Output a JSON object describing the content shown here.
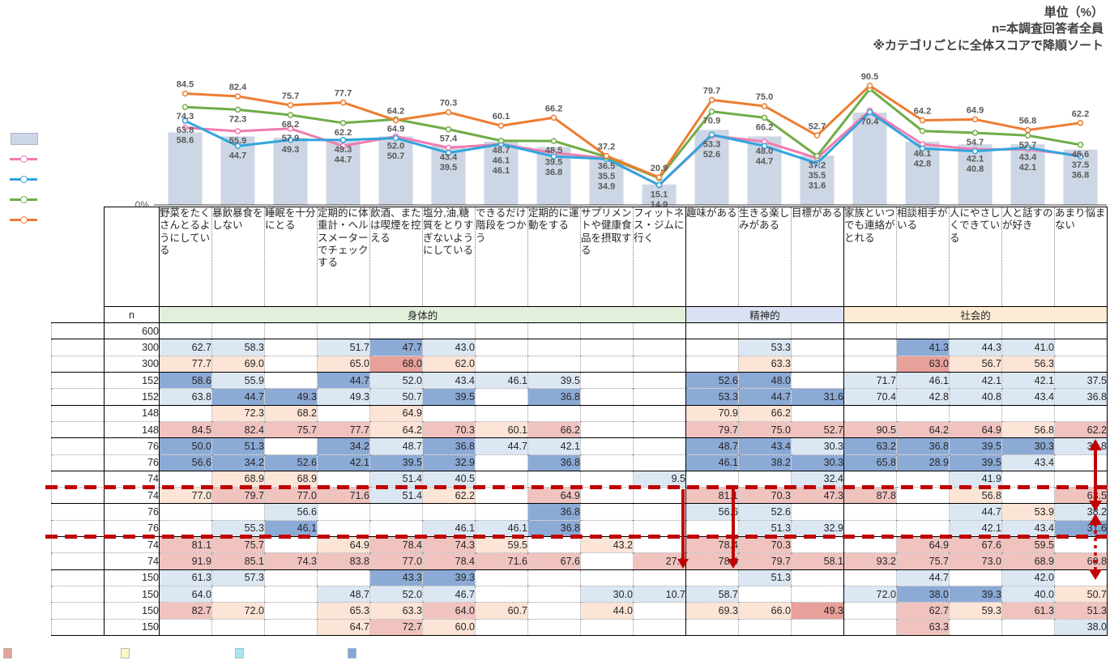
{
  "notes": {
    "unit": "単位（%）",
    "n": "n=本調査回答者全員",
    "sort": "※カテゴリごとに全体スコアで降順ソート"
  },
  "axis": {
    "zero_label": "0%"
  },
  "groups": [
    {
      "label": "身体的",
      "span": 10,
      "color": "#e2efda"
    },
    {
      "label": "精神的",
      "span": 3,
      "color": "#d9e1f2"
    },
    {
      "label": "社会的",
      "span": 5,
      "color": "#fcecd4"
    }
  ],
  "categories": [
    "野菜をたくさんとるようにしている",
    "暴飲暴食をしない",
    "睡眠を十分にとる",
    "定期的に体重計・ヘルスメーターでチェックする",
    "飲酒、または喫煙を控える",
    "塩分,油,糖質をとりすぎないようにしている",
    "できるだけ階段をつかう",
    "定期的に運動をする",
    "サプリメントや健康食品を摂取する",
    "フィットネス・ジムに行く",
    "趣味がある",
    "生きる楽しみがある",
    "目標がある",
    "家族といつでも連絡がとれる",
    "相談相手がいる",
    "人にやさしくできている",
    "人と話すのが好き",
    "あまり悩まない"
  ],
  "chart_data": {
    "type": "bar+line",
    "title": "",
    "ylim": [
      0,
      100
    ],
    "grid": false,
    "legend_position": "left",
    "categories": [
      "野菜をたくさんとるようにしている",
      "暴飲暴食をしない",
      "睡眠を十分にとる",
      "定期的に体重計・ヘルスメーターでチェックする",
      "飲酒、または喫煙を控える",
      "塩分,油,糖質をとりすぎないようにしている",
      "できるだけ階段をつかう",
      "定期的に運動をする",
      "サプリメントや健康食品を摂取する",
      "フィットネス・ジムに行く",
      "趣味がある",
      "生きる楽しみがある",
      "目標がある",
      "家族といつでも連絡がとれる",
      "相談相手がいる",
      "人にやさしくできている",
      "人と話すのが好き",
      "あまり悩まない"
    ],
    "bar_series": {
      "name": "total-bar",
      "color": "#cdd6e4",
      "labels_shown": false,
      "values": [
        55,
        52,
        51,
        50,
        52,
        45,
        48,
        44,
        35,
        15.5,
        57,
        52,
        37.5,
        70,
        48,
        46,
        46,
        42
      ]
    },
    "line_series": [
      {
        "name": "line-pink",
        "color": "#f17cb0",
        "values": [
          58.6,
          55.9,
          57.9,
          44.7,
          52.0,
          43.4,
          46.1,
          39.5,
          35.5,
          14.9,
          52.6,
          48.0,
          35.5,
          71.7,
          46.1,
          42.1,
          42.1,
          37.5
        ],
        "hidden_labels": [
          13
        ]
      },
      {
        "name": "line-blue",
        "color": "#31a5dd",
        "values": [
          63.8,
          44.7,
          49.3,
          49.3,
          50.7,
          39.5,
          46.1,
          36.8,
          34.9,
          15.1,
          53.3,
          44.7,
          31.6,
          70.4,
          42.8,
          40.8,
          43.4,
          36.8
        ],
        "hidden_labels": []
      },
      {
        "name": "line-green",
        "color": "#6fad47",
        "values": [
          74.3,
          72.3,
          68.2,
          62.2,
          64.9,
          57.4,
          48.7,
          48.5,
          36.5,
          20.3,
          70.9,
          66.2,
          37.2,
          88.0,
          56.1,
          54.7,
          52.7,
          45.6
        ],
        "hidden_labels": [
          9,
          13,
          14
        ]
      },
      {
        "name": "line-orange",
        "color": "#ed7d31",
        "values": [
          84.5,
          82.4,
          75.7,
          77.7,
          64.2,
          70.3,
          60.1,
          66.2,
          37.2,
          20.9,
          79.7,
          75.0,
          52.7,
          90.5,
          64.2,
          64.9,
          56.8,
          62.2
        ],
        "hidden_labels": []
      }
    ]
  },
  "table": {
    "n_header": "n",
    "cell_colors": {
      "b1": "#dbe7f3",
      "b2": "#8caad6",
      "r1": "#fce4d6",
      "r2": "#f0c3bf",
      "r3": "#e8a09a"
    },
    "rows": [
      {
        "n": "600",
        "cells": [
          null,
          null,
          null,
          null,
          null,
          null,
          null,
          null,
          null,
          null,
          null,
          null,
          null,
          null,
          null,
          null,
          null,
          null
        ]
      },
      {
        "n": "300",
        "cells": [
          "62.7|b1",
          "58.3|b1",
          null,
          "51.7|b1",
          "47.7|b2",
          "43.0|b1",
          null,
          null,
          null,
          null,
          null,
          "53.3|b1",
          null,
          null,
          "41.3|b2",
          "44.3|b1",
          "41.0|b1",
          null
        ]
      },
      {
        "n": "300",
        "cells": [
          "77.7|r1",
          "69.0|r1",
          null,
          "65.0|r1",
          "68.0|r3",
          "62.0|r1",
          null,
          null,
          null,
          null,
          null,
          "63.3|r1",
          null,
          null,
          "63.0|r3",
          "56.7|r1",
          "56.3|r1",
          null
        ]
      },
      {
        "n": "152",
        "cells": [
          "58.6|b2",
          "55.9|b1",
          null,
          "44.7|b2",
          "52.0|b1",
          "43.4|b1",
          "46.1|b1",
          "39.5|b1",
          null,
          null,
          "52.6|b2",
          "48.0|b2",
          null,
          "71.7|b1",
          "46.1|b1",
          "42.1|b1",
          "42.1|b1",
          "37.5|b1"
        ]
      },
      {
        "n": "152",
        "cells": [
          "63.8|b1",
          "44.7|b2",
          "49.3|b2",
          "49.3|b1",
          "50.7|b1",
          "39.5|b2",
          null,
          "36.8|b2",
          null,
          null,
          "53.3|b2",
          "44.7|b2",
          "31.6|b2",
          "70.4|b1",
          "42.8|b1",
          "40.8|b1",
          "43.4|b1",
          "36.8|b1"
        ]
      },
      {
        "n": "148",
        "cells": [
          null,
          "72.3|r1",
          "68.2|r1",
          null,
          "64.9|r1",
          null,
          null,
          null,
          null,
          null,
          "70.9|r1",
          "66.2|r1",
          null,
          null,
          null,
          null,
          null,
          null
        ]
      },
      {
        "n": "148",
        "cells": [
          "84.5|r2",
          "82.4|r2",
          "75.7|r2",
          "77.7|r2",
          "64.2|r1",
          "70.3|r2",
          "60.1|r1",
          "66.2|r2",
          null,
          null,
          "79.7|r2",
          "75.0|r2",
          "52.7|r2",
          "90.5|r2",
          "64.2|r2",
          "64.9|r2",
          "56.8|r1",
          "62.2|r2"
        ]
      },
      {
        "n": "76",
        "cells": [
          "50.0|b2",
          "51.3|b2",
          null,
          "34.2|b2",
          "48.7|b1",
          "36.8|b2",
          "44.7|b1",
          "42.1|b1",
          null,
          null,
          "48.7|b2",
          "43.4|b2",
          "30.3|b1",
          "63.2|b2",
          "36.8|b2",
          "39.5|b2",
          "30.3|b2",
          "36.8|b1"
        ]
      },
      {
        "n": "76",
        "cells": [
          "56.6|b2",
          "34.2|b2",
          "52.6|b2",
          "42.1|b2",
          "39.5|b2",
          "32.9|b2",
          null,
          "36.8|b2",
          null,
          null,
          "46.1|b2",
          "38.2|b2",
          "30.3|b2",
          "65.8|b2",
          "28.9|b2",
          "39.5|b2",
          "43.4|b1",
          null
        ]
      },
      {
        "n": "74",
        "cells": [
          null,
          "68.9|r1",
          "68.9|r1",
          null,
          "51.4|b1",
          "40.5|b1",
          null,
          null,
          null,
          "9.5|b1",
          null,
          null,
          "32.4|b1",
          null,
          null,
          "41.9|b1",
          null,
          null
        ]
      },
      {
        "n": "74",
        "cells": [
          "77.0|r1",
          "79.7|r2",
          "77.0|r2",
          "71.6|r2",
          "51.4|b1",
          "62.2|r1",
          null,
          "64.9|r2",
          null,
          null,
          "81.1|r2",
          "70.3|r2",
          "47.3|r2",
          "87.8|r2",
          null,
          "56.8|r1",
          null,
          "63.5|r2"
        ]
      },
      {
        "n": "76",
        "cells": [
          null,
          null,
          "56.6|b1",
          null,
          null,
          null,
          null,
          "36.8|b2",
          null,
          null,
          "56.6|b1",
          "52.6|b1",
          null,
          null,
          null,
          "44.7|b1",
          "53.9|r1",
          "38.2|b1"
        ]
      },
      {
        "n": "76",
        "cells": [
          null,
          "55.3|b1",
          "46.1|b2",
          null,
          null,
          "46.1|b1",
          "46.1|b1",
          "36.8|b2",
          null,
          null,
          null,
          "51.3|b1",
          "32.9|b1",
          null,
          null,
          "42.1|b1",
          "43.4|b1",
          "31.6|b2"
        ]
      },
      {
        "n": "74",
        "cells": [
          "81.1|r2",
          "75.7|r2",
          null,
          "64.9|r1",
          "78.4|r2",
          "74.3|r2",
          "59.5|r1",
          null,
          "43.2|r1",
          null,
          "78.4|r2",
          "70.3|r2",
          null,
          null,
          "64.9|r2",
          "67.6|r2",
          "59.5|r2",
          null
        ]
      },
      {
        "n": "74",
        "cells": [
          "91.9|r2",
          "85.1|r2",
          "74.3|r2",
          "83.8|r2",
          "77.0|r2",
          "78.4|r2",
          "71.6|r2",
          "67.6|r2",
          null,
          "27.0|r2",
          "78.4|r2",
          "79.7|r2",
          "58.1|r2",
          "93.2|r2",
          "75.7|r2",
          "73.0|r2",
          "68.9|r2",
          "60.8|r2"
        ]
      },
      {
        "n": "150",
        "cells": [
          "61.3|b1",
          "57.3|b1",
          null,
          null,
          "43.3|b2",
          "39.3|b2",
          null,
          null,
          null,
          null,
          null,
          "51.3|b1",
          null,
          null,
          "44.7|b1",
          null,
          "42.0|b1",
          null
        ]
      },
      {
        "n": "150",
        "cells": [
          "64.0|b1",
          null,
          null,
          "48.7|b1",
          "52.0|b1",
          "46.7|b1",
          null,
          null,
          "30.0|b1",
          "10.7|b1",
          "58.7|b1",
          null,
          null,
          "72.0|b1",
          "38.0|b2",
          "39.3|b2",
          "40.0|b1",
          "50.7|r1"
        ]
      },
      {
        "n": "150",
        "cells": [
          "82.7|r2",
          "72.0|r1",
          null,
          "65.3|r1",
          "63.3|r1",
          "64.0|r2",
          "60.7|r1",
          null,
          "44.0|r1",
          null,
          "69.3|r1",
          "66.0|r1",
          "49.3|r3",
          null,
          "62.7|r2",
          "59.3|r1",
          "61.3|r2",
          "51.3|r2"
        ]
      },
      {
        "n": "150",
        "cells": [
          null,
          null,
          null,
          "64.7|r1",
          "72.7|r2",
          "60.0|r1",
          null,
          null,
          null,
          null,
          null,
          null,
          null,
          null,
          "63.3|r2",
          null,
          null,
          "38.0|b1"
        ]
      }
    ]
  },
  "annotation_color": "#c00000",
  "bottom_legend_colors": [
    "#dfa49c",
    "#fbf6c0",
    "#a8e4f0",
    "#7fa7d9"
  ]
}
